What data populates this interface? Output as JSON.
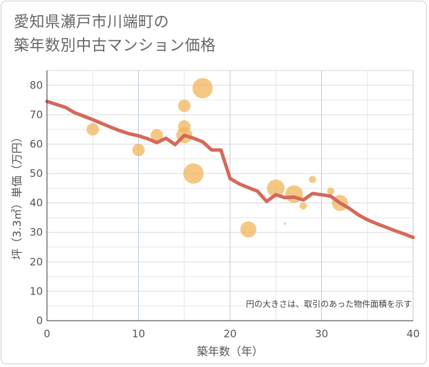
{
  "title_lines": [
    "愛知県瀬戸市川端町の",
    "築年数別中古マンション価格"
  ],
  "chart_data": {
    "type": "scatter",
    "title": "愛知県瀬戸市川端町の築年数別中古マンション価格",
    "xlabel": "築年数（年）",
    "ylabel": "坪（3.3㎡）単価（万円）",
    "xlim": [
      0,
      40
    ],
    "ylim": [
      0,
      85
    ],
    "xticks": [
      0,
      10,
      20,
      30,
      40
    ],
    "yticks": [
      0,
      10,
      20,
      30,
      40,
      50,
      60,
      70,
      80
    ],
    "grid": true,
    "note": "円の大きさは、取引のあった物件面積を示す",
    "colors": {
      "bubble": "#f0b55b",
      "line": "#d4695a",
      "grid_major": "#b8c9da",
      "grid_minor": "#e6e6e6",
      "axis": "#333333"
    },
    "series": [
      {
        "type": "bubble",
        "points": [
          {
            "x": 5,
            "y": 65,
            "size": 3
          },
          {
            "x": 10,
            "y": 58,
            "size": 3
          },
          {
            "x": 12,
            "y": 63,
            "size": 3
          },
          {
            "x": 15,
            "y": 73,
            "size": 3
          },
          {
            "x": 15,
            "y": 66,
            "size": 3
          },
          {
            "x": 15,
            "y": 63,
            "size": 5
          },
          {
            "x": 16,
            "y": 50,
            "size": 8
          },
          {
            "x": 17,
            "y": 79,
            "size": 8
          },
          {
            "x": 22,
            "y": 31,
            "size": 5
          },
          {
            "x": 25,
            "y": 45,
            "size": 6
          },
          {
            "x": 26,
            "y": 33,
            "size": 0.1
          },
          {
            "x": 27,
            "y": 43,
            "size": 6
          },
          {
            "x": 28,
            "y": 39,
            "size": 1
          },
          {
            "x": 29,
            "y": 48,
            "size": 1
          },
          {
            "x": 31,
            "y": 44,
            "size": 1
          },
          {
            "x": 32,
            "y": 40,
            "size": 5
          }
        ]
      },
      {
        "type": "line",
        "x": [
          0,
          1,
          2,
          3,
          4,
          5,
          6,
          7,
          8,
          9,
          10,
          11,
          12,
          13,
          14,
          15,
          16,
          17,
          18,
          19,
          20,
          21,
          22,
          23,
          24,
          25,
          26,
          27,
          28,
          29,
          30,
          31,
          32,
          33,
          34,
          35,
          36,
          37,
          38,
          39,
          40
        ],
        "y": [
          74.5,
          73.5,
          72.5,
          70.7,
          69.5,
          68.3,
          67,
          65.7,
          64.5,
          63.5,
          62.8,
          61.8,
          60.5,
          62,
          59.8,
          63,
          62,
          60.8,
          58,
          58,
          48.3,
          46.5,
          45.2,
          44,
          40.5,
          42.8,
          41.8,
          42,
          41,
          43.2,
          42.8,
          42.3,
          40,
          38.2,
          36,
          34.3,
          33,
          31.8,
          30.6,
          29.5,
          28.3
        ]
      }
    ]
  }
}
